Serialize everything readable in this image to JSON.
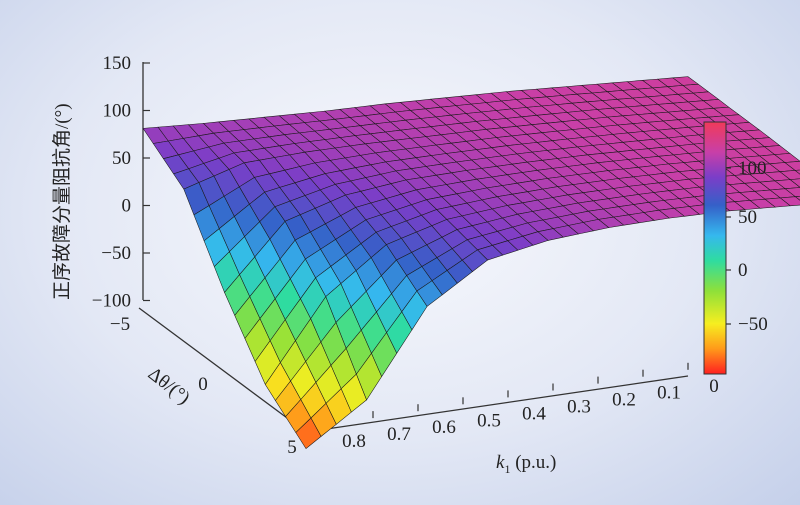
{
  "chart_data": {
    "type": "surface",
    "zlabel": "正序故障分量阻抗角/(°)",
    "xlabel_main": "k",
    "xlabel_sub": "1",
    "xlabel_unit": " (p.u.)",
    "ylabel": "Δθ/(°)",
    "z_ticks": [
      "150",
      "100",
      "50",
      "0",
      "−50",
      "−100"
    ],
    "x_ticks": [
      "0.8",
      "0.7",
      "0.6",
      "0.5",
      "0.4",
      "0.3",
      "0.2",
      "0.1",
      "0"
    ],
    "y_ticks": [
      "−5",
      "0",
      "5"
    ],
    "colorbar_ticks": [
      "100",
      "50",
      "0",
      "−50"
    ],
    "colorbar_range": [
      -95,
      125
    ],
    "k1": [
      0.9,
      0.8,
      0.7,
      0.6,
      0.5,
      0.4,
      0.3,
      0.2,
      0.1,
      0
    ],
    "dtheta": [
      -5,
      -2.5,
      0,
      2.5,
      5
    ],
    "z_values": [
      [
        87,
        88,
        90,
        92,
        95,
        97,
        99,
        100,
        101,
        102
      ],
      [
        60,
        80,
        86,
        90,
        93,
        96,
        98,
        100,
        101,
        102
      ],
      [
        -5,
        55,
        75,
        85,
        90,
        94,
        97,
        99,
        101,
        102
      ],
      [
        -60,
        15,
        58,
        77,
        86,
        92,
        96,
        99,
        100,
        101
      ],
      [
        -90,
        -50,
        30,
        68,
        82,
        90,
        95,
        98,
        99,
        100
      ]
    ]
  }
}
